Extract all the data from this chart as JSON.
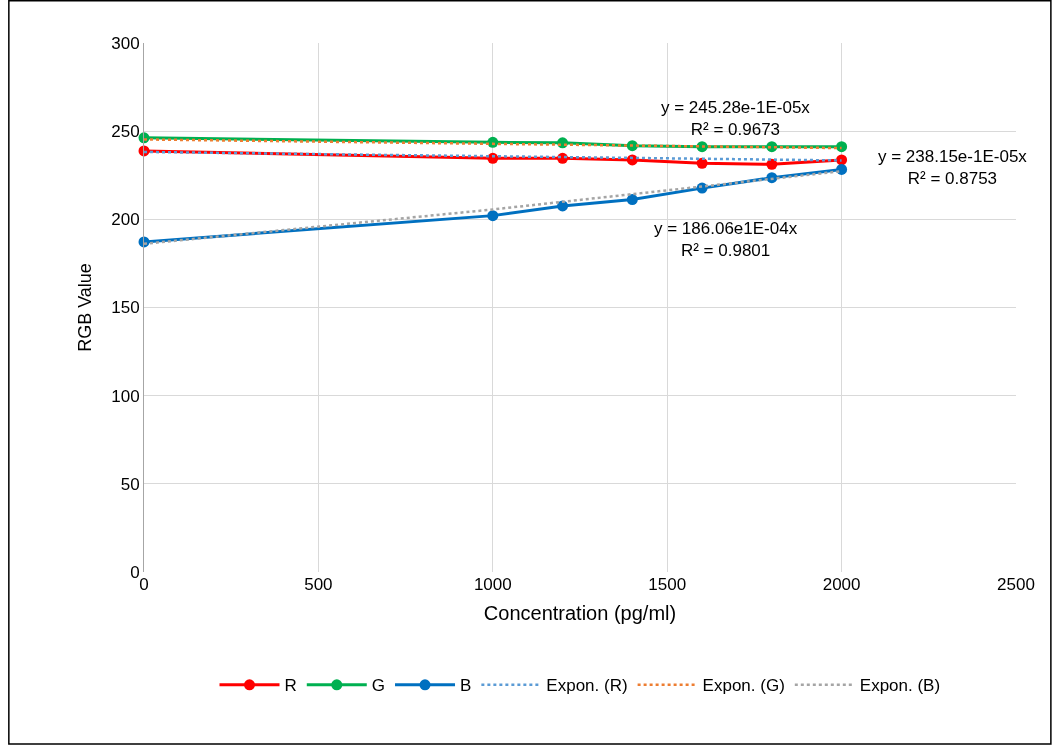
{
  "chart_data": {
    "type": "line",
    "xlabel": "Concentration (pg/ml)",
    "ylabel": "RGB Value",
    "x": [
      0,
      1000,
      1200,
      1400,
      1600,
      1800,
      2000
    ],
    "series": [
      {
        "name": "R",
        "color": "#ff0000",
        "values": [
          238.8,
          234.6,
          234.6,
          233.7,
          231.8,
          231.2,
          233.7
        ]
      },
      {
        "name": "G",
        "color": "#00b050",
        "values": [
          246.2,
          243.7,
          243.4,
          241.8,
          241.2,
          241.2,
          241.2
        ]
      },
      {
        "name": "B",
        "color": "#0070c0",
        "values": [
          187.2,
          202.1,
          207.6,
          211.2,
          217.7,
          223.6,
          228.3
        ]
      },
      {
        "name": "Expon. (R)",
        "color": "#5b9bd5",
        "x": [
          0,
          1000,
          2000
        ],
        "values": [
          238.2,
          235.8,
          233.4
        ],
        "marker": "none",
        "line_style": "dotted"
      },
      {
        "name": "Expon. (G)",
        "color": "#ed7d31",
        "x": [
          0,
          1000,
          2000
        ],
        "values": [
          245.3,
          242.8,
          240.4
        ],
        "marker": "none",
        "line_style": "dotted"
      },
      {
        "name": "Expon. (B)",
        "color": "#a5a5a5",
        "x": [
          0,
          1000,
          2000
        ],
        "values": [
          186.1,
          205.6,
          227.3
        ],
        "marker": "none",
        "line_style": "dotted"
      }
    ],
    "annotations": [
      "y = 245.28e-1E-05x\nR² = 0.9673",
      "y = 238.15e-1E-05x\nR² = 0.8753",
      "y = 186.06e1E-04x\nR² = 0.9801"
    ],
    "xlim": [
      0,
      2500
    ],
    "xticks": [
      0,
      500,
      1000,
      1500,
      2000,
      2500
    ],
    "ylim": [
      0,
      300
    ],
    "yticks": [
      0,
      50,
      100,
      150,
      200,
      250,
      300
    ],
    "grid": true,
    "legend": "bottom",
    "marker": "circle",
    "line_style": "solid"
  }
}
